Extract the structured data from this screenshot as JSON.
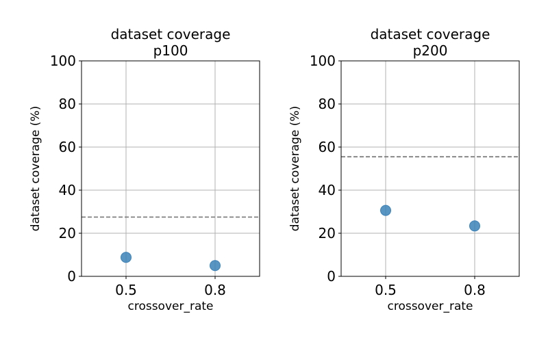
{
  "chart_data": [
    {
      "type": "scatter",
      "title": "dataset coverage",
      "subtitle": "p100",
      "xlabel": "crossover_rate",
      "ylabel": "dataset coverage (%)",
      "ylim": [
        0,
        100
      ],
      "yticks": [
        0,
        20,
        40,
        60,
        80,
        100
      ],
      "categories": [
        "0.5",
        "0.8"
      ],
      "x": [
        0.5,
        0.8
      ],
      "y": [
        8.8,
        5.0
      ],
      "reference_line": 27.5,
      "grid": true,
      "marker_color": "#3b82b8",
      "reference_color": "#808080"
    },
    {
      "type": "scatter",
      "title": "dataset coverage",
      "subtitle": "p200",
      "xlabel": "crossover_rate",
      "ylabel": "dataset coverage (%)",
      "ylim": [
        0,
        100
      ],
      "yticks": [
        0,
        20,
        40,
        60,
        80,
        100
      ],
      "categories": [
        "0.5",
        "0.8"
      ],
      "x": [
        0.5,
        0.8
      ],
      "y": [
        30.6,
        23.4
      ],
      "reference_line": 55.5,
      "grid": true,
      "marker_color": "#3b82b8",
      "reference_color": "#808080"
    }
  ]
}
